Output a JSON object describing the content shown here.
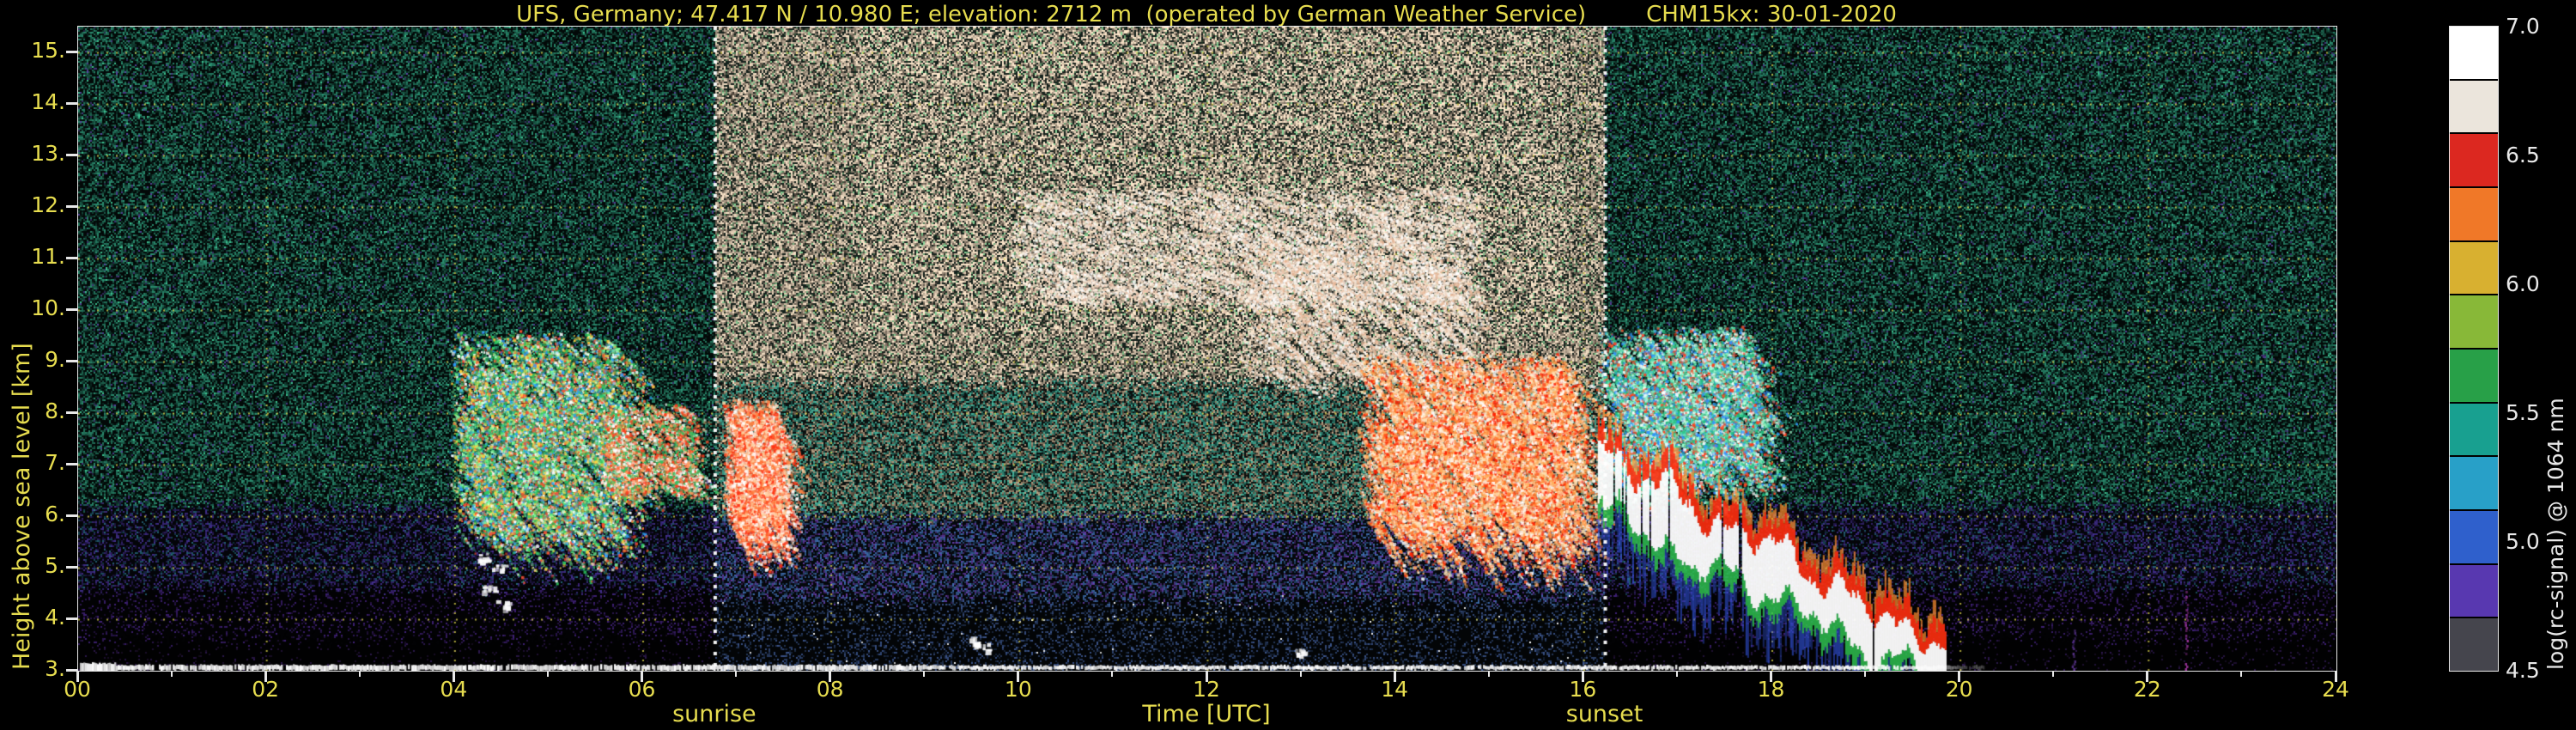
{
  "colors": {
    "background": "#000000",
    "axis_text": "#e7dd4f",
    "grid": "#e7dd4f",
    "frame": "#e8e8e8",
    "colorbar_text": "#e8e8e8",
    "annotation_line": "#ffffff"
  },
  "title": {
    "main": "UFS, Germany; 47.417 N / 10.980 E; elevation: 2712 m  (operated by German Weather Service)",
    "right": "CHM15kx: 30-01-2020"
  },
  "axes": {
    "x": {
      "label": "Time [UTC]",
      "range": [
        0,
        24
      ],
      "ticks": [
        "00",
        "02",
        "04",
        "06",
        "08",
        "10",
        "12",
        "14",
        "16",
        "18",
        "20",
        "22",
        "24"
      ],
      "tick_values": [
        0,
        2,
        4,
        6,
        8,
        10,
        12,
        14,
        16,
        18,
        20,
        22,
        24
      ]
    },
    "y": {
      "label": "Height above sea level [km]",
      "range": [
        3,
        15.5
      ],
      "ticks": [
        "15.",
        "14.",
        "13.",
        "12.",
        "11.",
        "10.",
        "9.",
        "8.",
        "7.",
        "6.",
        "5.",
        "4.",
        "3."
      ],
      "tick_values": [
        15,
        14,
        13,
        12,
        11,
        10,
        9,
        8,
        7,
        6,
        5,
        4,
        3
      ]
    }
  },
  "annotations": {
    "sunrise": {
      "label": "sunrise",
      "time": 6.77
    },
    "sunset": {
      "label": "sunset",
      "time": 16.23
    }
  },
  "colorbar": {
    "label": "log(rc-signal) @ 1064 nm",
    "range": [
      4.5,
      7.0
    ],
    "ticks": [
      "7.0",
      "6.5",
      "6.0",
      "5.5",
      "5.0",
      "4.5"
    ],
    "tick_values": [
      7.0,
      6.5,
      6.0,
      5.5,
      5.0,
      4.5
    ],
    "colors_top_to_bottom": [
      "#ffffff",
      "#ebe5dc",
      "#dc2820",
      "#f07828",
      "#d8b030",
      "#88b838",
      "#28a048",
      "#18a090",
      "#28a0c8",
      "#2f60cc",
      "#5838b0",
      "#45454d"
    ]
  },
  "chart_data": {
    "type": "heatmap",
    "title": "UFS ceilometer quicklook CHM15kx 30-01-2020",
    "xlabel": "Time [UTC]",
    "ylabel": "Height above sea level [km]",
    "x_range": [
      0,
      24
    ],
    "y_range": [
      3,
      15.5
    ],
    "colormap_label": "log(rc-signal) @ 1064 nm",
    "colormap_range": [
      4.5,
      7.0
    ],
    "grid": "yellow dashed every 2 h and every 1 km",
    "background_regions": [
      {
        "name": "night-morning",
        "t": [
          0,
          6.77
        ],
        "description": "dark green speckle noise above ~6 km, purple-blue noise 4.5-6 km, near-black below 4.5 km"
      },
      {
        "name": "daylight",
        "t": [
          6.77,
          16.23
        ],
        "description": "tan/brown solar background noise, strongest above ~9 km; teal/blue noise below 6 km"
      },
      {
        "name": "night-evening",
        "t": [
          16.23,
          24
        ],
        "description": "dark green speckle noise aloft, near-black below 4.5 km"
      }
    ],
    "features": [
      {
        "type": "streaks",
        "name": "morning-cirrus-virga",
        "t": [
          3.95,
          5.65
        ],
        "h": [
          5.8,
          9.6
        ],
        "slope": -2.2,
        "count": 900,
        "len": 0.9,
        "size": 2.4,
        "colors": [
          "#2ecc60",
          "#7dff9a",
          "#ffffff",
          "#ff5030",
          "#2fa0ff",
          "#1f8050",
          "#ffd040"
        ]
      },
      {
        "type": "streaks",
        "name": "morning-cloud-patch",
        "t": [
          5.55,
          6.5
        ],
        "h": [
          6.6,
          8.2
        ],
        "slope": -1.5,
        "count": 320,
        "len": 0.5,
        "size": 2.4,
        "colors": [
          "#ff4020",
          "#ffffff",
          "#ffa060",
          "#30c060"
        ]
      },
      {
        "type": "streaks",
        "name": "post-sunrise-cloud",
        "t": [
          6.85,
          7.4
        ],
        "h": [
          5.9,
          8.3
        ],
        "slope": -4.0,
        "count": 420,
        "len": 0.8,
        "size": 2.6,
        "colors": [
          "#ff3010",
          "#ffffff",
          "#ff8040",
          "#ffd0a0"
        ]
      },
      {
        "type": "streaks",
        "name": "midday-cirrus",
        "t": [
          9.9,
          14.6
        ],
        "h": [
          10.2,
          12.4
        ],
        "slope": -0.6,
        "count": 750,
        "len": 0.55,
        "size": 2.2,
        "colors": [
          "#ffffff",
          "#f0ddc8",
          "#e8c0a8",
          "#fff6ea"
        ]
      },
      {
        "type": "streaks",
        "name": "midday-virga",
        "t": [
          12.3,
          14.7
        ],
        "h": [
          8.8,
          11.6
        ],
        "slope": -1.6,
        "count": 420,
        "len": 0.7,
        "size": 2.2,
        "colors": [
          "#f4e2d0",
          "#ffffff",
          "#e8b898"
        ]
      },
      {
        "type": "streaks",
        "name": "afternoon-virga",
        "t": [
          13.6,
          15.75
        ],
        "h": [
          5.9,
          9.2
        ],
        "slope": -2.8,
        "count": 950,
        "len": 1.1,
        "size": 2.6,
        "colors": [
          "#ff2000",
          "#ffffff",
          "#ff8030",
          "#ffe0b0",
          "#ffb060"
        ]
      },
      {
        "type": "streaks",
        "name": "evening-virga",
        "t": [
          16.15,
          17.75
        ],
        "h": [
          7.0,
          9.7
        ],
        "slope": -2.4,
        "count": 700,
        "len": 0.9,
        "size": 2.4,
        "colors": [
          "#20c080",
          "#60e0b0",
          "#ff4020",
          "#ffffff",
          "#2f90ff",
          "#a0ffd0"
        ]
      },
      {
        "type": "band",
        "name": "descending-cloud-base",
        "t": [
          16.15,
          19.85
        ],
        "h_start": 6.7,
        "h_end": 3.05,
        "thickness": 1.1,
        "gap": 0.05,
        "colors": {
          "core": "#ffffff",
          "upper": "#ff3010",
          "upper2": "#ff9030",
          "lower": "#2fc050",
          "fringe": "#3355dd"
        }
      },
      {
        "type": "surface",
        "name": "surface-return",
        "t": [
          0,
          20.25
        ],
        "h": 3.06,
        "color": "#ffffff"
      },
      {
        "type": "dots",
        "name": "boundary-layer-specks",
        "color": "#ffffff",
        "size": 5,
        "points": [
          [
            4.35,
            4.6
          ],
          [
            4.45,
            5.0
          ],
          [
            4.5,
            4.3
          ],
          [
            4.3,
            5.2
          ],
          [
            9.5,
            3.6
          ],
          [
            9.6,
            3.5
          ],
          [
            12.95,
            3.35
          ]
        ]
      },
      {
        "type": "vcolumn",
        "name": "late-evening-column",
        "t": 22.4,
        "h": [
          3.0,
          4.6
        ],
        "color": "#c040c0"
      },
      {
        "type": "vcolumn",
        "name": "late-evening-column-2",
        "t": 21.2,
        "h": [
          3.0,
          3.8
        ],
        "color": "#7040b0"
      }
    ]
  }
}
